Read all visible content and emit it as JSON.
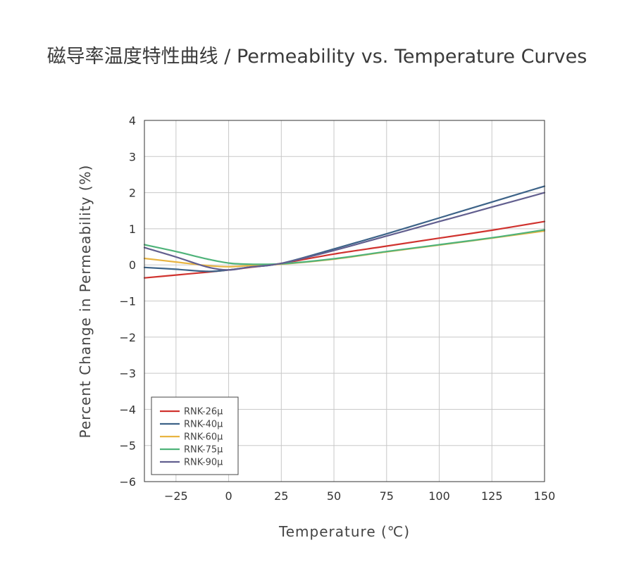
{
  "chart_data": {
    "type": "line",
    "title": "磁导率温度特性曲线 / Permeability vs. Temperature Curves",
    "xlabel": "Temperature (℃)",
    "ylabel": "Percent Change in Permeability (%)",
    "xlim": [
      -40,
      150
    ],
    "ylim": [
      -6,
      4
    ],
    "xticks": [
      -25,
      0,
      25,
      50,
      75,
      100,
      125,
      150
    ],
    "xtick_labels": [
      "−25",
      "0",
      "25",
      "50",
      "75",
      "100",
      "125",
      "150"
    ],
    "yticks": [
      4,
      3,
      2,
      1,
      0,
      -1,
      -2,
      -3,
      -4,
      -5,
      -6
    ],
    "ytick_labels": [
      "4",
      "3",
      "2",
      "1",
      "0",
      "−1",
      "−2",
      "−3",
      "−4",
      "−5",
      "−6"
    ],
    "grid": true,
    "legend_position": "bottom-left",
    "series": [
      {
        "name": "RNK-26μ",
        "color": "#d0332f",
        "x": [
          -40,
          -25,
          -10,
          0,
          10,
          25,
          50,
          75,
          100,
          125,
          150
        ],
        "y": [
          -0.36,
          -0.28,
          -0.2,
          -0.14,
          -0.07,
          0.04,
          0.3,
          0.52,
          0.74,
          0.96,
          1.2
        ]
      },
      {
        "name": "RNK-40μ",
        "color": "#3d6388",
        "x": [
          -40,
          -25,
          -10,
          0,
          10,
          25,
          50,
          75,
          100,
          125,
          150
        ],
        "y": [
          -0.07,
          -0.12,
          -0.18,
          -0.14,
          -0.06,
          0.04,
          0.44,
          0.86,
          1.3,
          1.74,
          2.18
        ]
      },
      {
        "name": "RNK-60μ",
        "color": "#e8b441",
        "x": [
          -40,
          -25,
          -10,
          0,
          10,
          25,
          50,
          75,
          100,
          125,
          150
        ],
        "y": [
          0.18,
          0.08,
          -0.02,
          -0.05,
          -0.02,
          0.02,
          0.16,
          0.36,
          0.55,
          0.74,
          0.94
        ]
      },
      {
        "name": "RNK-75μ",
        "color": "#4fb37a",
        "x": [
          -40,
          -25,
          -10,
          0,
          10,
          25,
          50,
          75,
          100,
          125,
          150
        ],
        "y": [
          0.56,
          0.37,
          0.16,
          0.05,
          0.02,
          0.03,
          0.17,
          0.37,
          0.56,
          0.75,
          0.97
        ]
      },
      {
        "name": "RNK-90μ",
        "color": "#625f8f",
        "x": [
          -40,
          -25,
          -10,
          0,
          10,
          25,
          50,
          75,
          100,
          125,
          150
        ],
        "y": [
          0.48,
          0.22,
          -0.06,
          -0.14,
          -0.06,
          0.04,
          0.4,
          0.8,
          1.2,
          1.6,
          2.0
        ]
      }
    ]
  }
}
